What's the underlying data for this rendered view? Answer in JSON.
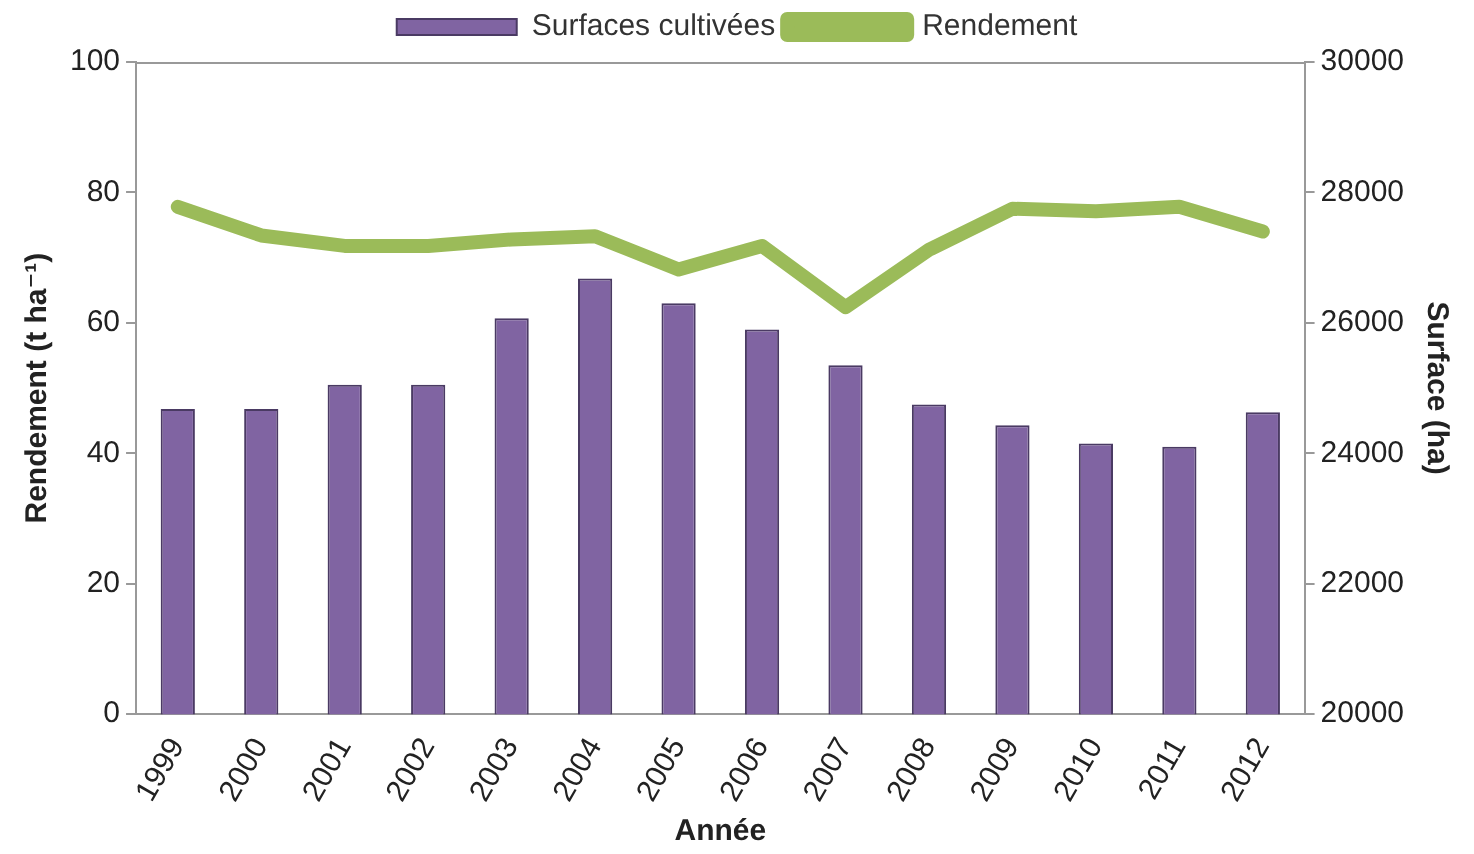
{
  "chart_data": {
    "type": "bar",
    "categories": [
      "1999",
      "2000",
      "2001",
      "2002",
      "2003",
      "2004",
      "2005",
      "2006",
      "2007",
      "2008",
      "2009",
      "2010",
      "2011",
      "2012"
    ],
    "series": [
      {
        "name": "Surfaces cultivées",
        "axis": "y2",
        "color": "#8064a2",
        "values": [
          24680,
          24680,
          25050,
          25050,
          26070,
          26680,
          26300,
          25900,
          25350,
          24750,
          24430,
          24150,
          24100,
          24630
        ]
      },
      {
        "name": "Rendement",
        "type": "line",
        "color": "#9bbb59",
        "values": [
          77.8,
          73.4,
          71.8,
          71.8,
          72.8,
          73.3,
          68.2,
          71.8,
          62.4,
          71.2,
          77.5,
          77.1,
          77.8,
          74.0
        ]
      }
    ],
    "xlabel": "Année",
    "ylabel": "Rendement (t ha⁻¹)",
    "y2label": "Surface (ha)",
    "ylim": [
      0,
      100
    ],
    "yticks": [
      0,
      20,
      40,
      60,
      80,
      100
    ],
    "y2lim": [
      20000,
      30000
    ],
    "y2ticks": [
      20000,
      22000,
      24000,
      26000,
      28000,
      30000
    ],
    "grid": false,
    "legend": "top",
    "marker": "none",
    "line_style": "solid"
  }
}
